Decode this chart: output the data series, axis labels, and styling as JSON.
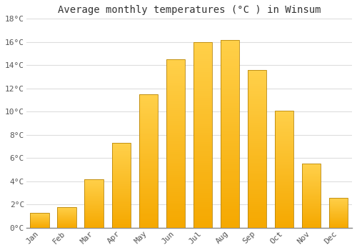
{
  "months": [
    "Jan",
    "Feb",
    "Mar",
    "Apr",
    "May",
    "Jun",
    "Jul",
    "Aug",
    "Sep",
    "Oct",
    "Nov",
    "Dec"
  ],
  "values": [
    1.3,
    1.8,
    4.2,
    7.3,
    11.5,
    14.5,
    16.0,
    16.2,
    13.6,
    10.1,
    5.5,
    2.6
  ],
  "bar_color_light": "#FFD04A",
  "bar_color_dark": "#F5A800",
  "bar_edge_color": "#B8860B",
  "title": "Average monthly temperatures (°C ) in Winsum",
  "ylim": [
    0,
    18
  ],
  "yticks": [
    0,
    2,
    4,
    6,
    8,
    10,
    12,
    14,
    16,
    18
  ],
  "background_color": "#FFFFFF",
  "grid_color": "#DDDDDD",
  "font_family": "monospace",
  "title_fontsize": 10,
  "tick_fontsize": 8
}
